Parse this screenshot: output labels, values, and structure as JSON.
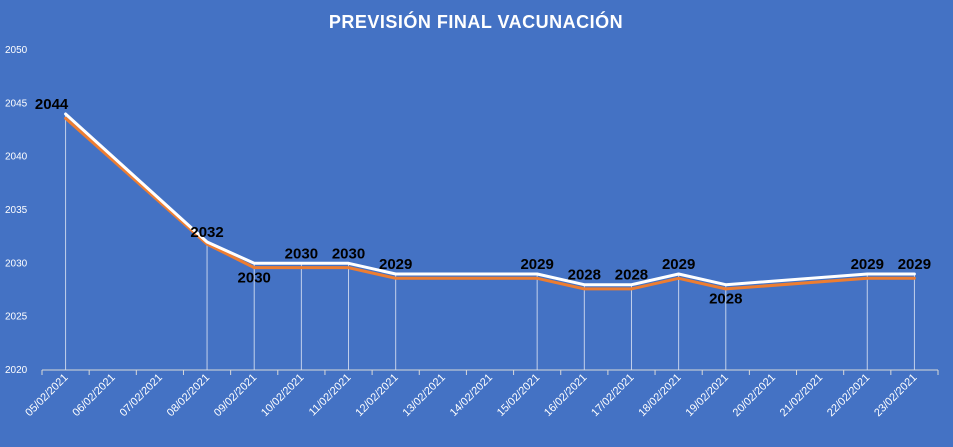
{
  "chart_data": {
    "type": "line",
    "title": "PREVISIÓN FINAL VACUNACIÓN",
    "xlabel": "",
    "ylabel": "",
    "ylim": [
      2020,
      2050
    ],
    "yticks": [
      "2020",
      "2025",
      "2030",
      "2035",
      "2040",
      "2045",
      "2050"
    ],
    "categories": [
      "05/02/2021",
      "06/02/2021",
      "07/02/2021",
      "08/02/2021",
      "09/02/2021",
      "10/02/2021",
      "11/02/2021",
      "12/02/2021",
      "13/02/2021",
      "14/02/2021",
      "15/02/2021",
      "16/02/2021",
      "17/02/2021",
      "18/02/2021",
      "19/02/2021",
      "20/02/2021",
      "21/02/2021",
      "22/02/2021",
      "23/02/2021"
    ],
    "series": [
      {
        "color": "#FFFFFF",
        "values": [
          2044,
          null,
          null,
          2032,
          2030,
          2030,
          2030,
          2029,
          null,
          null,
          2029,
          2028,
          2028,
          2029,
          2028,
          null,
          null,
          2029,
          2029
        ]
      },
      {
        "color": "#ED7D31",
        "values": [
          2043.6,
          null,
          null,
          2031.8,
          2029.6,
          2029.6,
          2029.6,
          2028.6,
          null,
          null,
          2028.6,
          2027.6,
          2027.6,
          2028.6,
          2027.6,
          null,
          null,
          2028.6,
          2028.6
        ]
      }
    ],
    "data_labels": [
      {
        "index": 0,
        "text": "2044"
      },
      {
        "index": 3,
        "text": "2032"
      },
      {
        "index": 4,
        "text": "2030"
      },
      {
        "index": 5,
        "text": "2030"
      },
      {
        "index": 6,
        "text": "2030"
      },
      {
        "index": 7,
        "text": "2029"
      },
      {
        "index": 10,
        "text": "2029"
      },
      {
        "index": 11,
        "text": "2028"
      },
      {
        "index": 12,
        "text": "2028"
      },
      {
        "index": 13,
        "text": "2029"
      },
      {
        "index": 14,
        "text": "2028"
      },
      {
        "index": 17,
        "text": "2029"
      },
      {
        "index": 18,
        "text": "2029"
      }
    ],
    "grid": false,
    "drop_lines": true,
    "background": "#4472C4"
  }
}
